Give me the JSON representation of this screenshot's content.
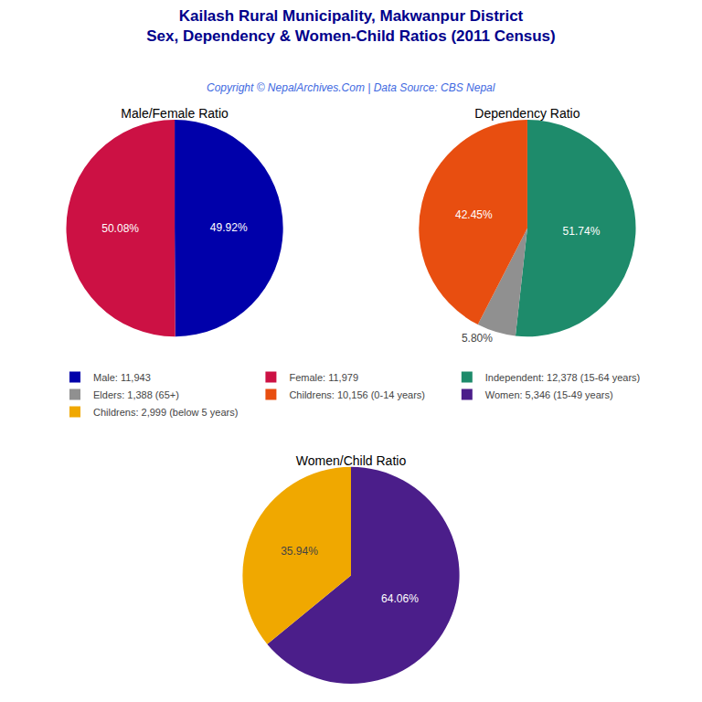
{
  "title": "Kailash Rural Municipality, Makwanpur District",
  "subtitle": "Sex, Dependency & Women-Child Ratios (2011 Census)",
  "annotations": [
    "Copyright © NepalArchives.Com | Data Source: CBS Nepal"
  ],
  "chart_data": [
    {
      "type": "pie",
      "title": "Male/Female Ratio",
      "categories": [
        "Male: 11,943",
        "Female: 11,979"
      ],
      "values": [
        49.92,
        50.08
      ],
      "value_labels": [
        "49.92%",
        "50.08%"
      ],
      "colors": [
        "#0000AA",
        "#CC1144"
      ],
      "data_labels": true
    },
    {
      "type": "pie",
      "title": "Dependency Ratio",
      "categories": [
        "Independent: 12,378 (15-64 years)",
        "Elders: 1,388 (65+)",
        "Childrens: 10,156 (0-14 years)"
      ],
      "values": [
        51.74,
        5.8,
        42.45
      ],
      "value_labels": [
        "51.74%",
        "5.80%",
        "42.45%"
      ],
      "colors": [
        "#1E8B6B",
        "#909090",
        "#E84E10"
      ],
      "data_labels": true
    },
    {
      "type": "pie",
      "title": "Women/Child Ratio",
      "categories": [
        "Women: 5,346 (15-49 years)",
        "Childrens: 2,999 (below 5 years)"
      ],
      "values": [
        64.06,
        35.94
      ],
      "value_labels": [
        "64.06%",
        "35.94%"
      ],
      "colors": [
        "#4B1E8A",
        "#F0A800"
      ],
      "data_labels": true
    }
  ]
}
